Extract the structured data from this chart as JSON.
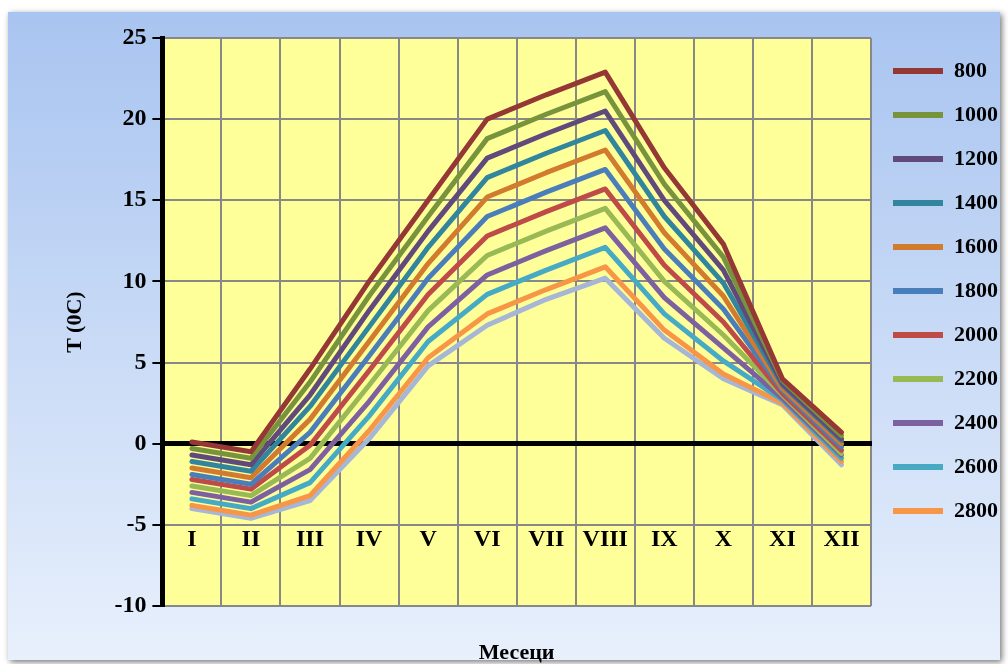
{
  "chart_data": {
    "type": "line",
    "xlabel": "Месеци",
    "ylabel": "T (0C)",
    "categories": [
      "I",
      "II",
      "III",
      "IV",
      "V",
      "VI",
      "VII",
      "VIII",
      "IX",
      "X",
      "XI",
      "XII"
    ],
    "ylim": [
      -10,
      25
    ],
    "yticks": [
      -10,
      -5,
      0,
      5,
      10,
      15,
      20,
      25
    ],
    "grid": true,
    "legend": "right",
    "marker": "none",
    "line_style": "solid",
    "series": [
      {
        "name": "800",
        "color": "#953735",
        "values": [
          0.1,
          -0.5,
          4.6,
          10.0,
          15.0,
          20.0,
          21.5,
          22.9,
          17.0,
          12.3,
          4.0,
          0.7
        ]
      },
      {
        "name": "1000",
        "color": "#77933c",
        "values": [
          -0.3,
          -0.9,
          3.8,
          9.1,
          14.0,
          18.8,
          20.3,
          21.7,
          16.0,
          11.5,
          3.9,
          0.5
        ]
      },
      {
        "name": "1200",
        "color": "#604a7b",
        "values": [
          -0.7,
          -1.3,
          3.0,
          8.2,
          13.1,
          17.6,
          19.1,
          20.5,
          15.0,
          10.7,
          3.7,
          0.3
        ]
      },
      {
        "name": "1400",
        "color": "#31859c",
        "values": [
          -1.1,
          -1.7,
          2.3,
          7.2,
          12.1,
          16.4,
          17.9,
          19.3,
          14.0,
          9.9,
          3.6,
          0.2
        ]
      },
      {
        "name": "1600",
        "color": "#d27b2f",
        "values": [
          -1.5,
          -2.1,
          1.5,
          6.3,
          11.1,
          15.2,
          16.7,
          18.1,
          13.0,
          9.1,
          3.4,
          0.0
        ]
      },
      {
        "name": "1800",
        "color": "#4a7ebb",
        "values": [
          -1.9,
          -2.5,
          0.7,
          5.4,
          10.2,
          14.0,
          15.5,
          16.9,
          12.0,
          8.3,
          3.3,
          -0.2
        ]
      },
      {
        "name": "2000",
        "color": "#be4b48",
        "values": [
          -2.2,
          -2.8,
          -0.1,
          4.5,
          9.2,
          12.8,
          14.3,
          15.7,
          11.0,
          7.5,
          3.1,
          -0.4
        ]
      },
      {
        "name": "2200",
        "color": "#98b954",
        "values": [
          -2.6,
          -3.2,
          -0.9,
          3.6,
          8.2,
          11.6,
          13.1,
          14.5,
          10.0,
          6.7,
          3.0,
          -0.6
        ]
      },
      {
        "name": "2400",
        "color": "#7d60a0",
        "values": [
          -3.0,
          -3.6,
          -1.6,
          2.6,
          7.2,
          10.4,
          11.9,
          13.3,
          9.0,
          5.9,
          2.8,
          -0.7
        ]
      },
      {
        "name": "2600",
        "color": "#46aac5",
        "values": [
          -3.4,
          -4.0,
          -2.4,
          1.7,
          6.3,
          9.2,
          10.7,
          12.1,
          8.0,
          5.1,
          2.7,
          -0.9
        ]
      },
      {
        "name": "2800",
        "color": "#f79646",
        "values": [
          -3.8,
          -4.4,
          -3.2,
          0.8,
          5.3,
          8.0,
          9.5,
          10.9,
          7.0,
          4.3,
          2.5,
          -1.1
        ]
      },
      {
        "color": "#a5b6d6",
        "values": [
          -4.0,
          -4.6,
          -3.5,
          0.3,
          4.8,
          7.3,
          8.9,
          10.2,
          6.5,
          4.0,
          2.4,
          -1.3
        ]
      }
    ]
  }
}
